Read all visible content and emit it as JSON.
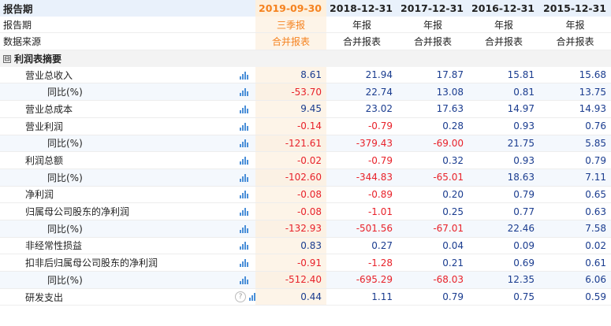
{
  "header": {
    "label": "报告期",
    "periods": [
      "2019-09-30",
      "2018-12-31",
      "2017-12-31",
      "2016-12-31",
      "2015-12-31"
    ]
  },
  "report_types": {
    "label": "报告期",
    "values": [
      "三季报",
      "年报",
      "年报",
      "年报",
      "年报"
    ]
  },
  "data_source": {
    "label": "数据来源",
    "values": [
      "合并报表",
      "合并报表",
      "合并报表",
      "合并报表",
      "合并报表"
    ]
  },
  "section": {
    "toggle": "⊟",
    "title": "利润表摘要"
  },
  "rows": [
    {
      "label": "营业总收入",
      "level": 1,
      "values": [
        "8.61",
        "21.94",
        "17.87",
        "15.81",
        "15.68"
      ]
    },
    {
      "label": "同比(%)",
      "level": 2,
      "values": [
        "-53.70",
        "22.74",
        "13.08",
        "0.81",
        "13.75"
      ]
    },
    {
      "label": "营业总成本",
      "level": 1,
      "values": [
        "9.45",
        "23.02",
        "17.63",
        "14.97",
        "14.93"
      ]
    },
    {
      "label": "营业利润",
      "level": 1,
      "values": [
        "-0.14",
        "-0.79",
        "0.28",
        "0.93",
        "0.76"
      ]
    },
    {
      "label": "同比(%)",
      "level": 2,
      "values": [
        "-121.61",
        "-379.43",
        "-69.00",
        "21.75",
        "5.85"
      ]
    },
    {
      "label": "利润总额",
      "level": 1,
      "values": [
        "-0.02",
        "-0.79",
        "0.32",
        "0.93",
        "0.79"
      ]
    },
    {
      "label": "同比(%)",
      "level": 2,
      "values": [
        "-102.60",
        "-344.83",
        "-65.01",
        "18.63",
        "7.11"
      ]
    },
    {
      "label": "净利润",
      "level": 1,
      "values": [
        "-0.08",
        "-0.89",
        "0.20",
        "0.79",
        "0.65"
      ]
    },
    {
      "label": "归属母公司股东的净利润",
      "level": 1,
      "values": [
        "-0.08",
        "-1.01",
        "0.25",
        "0.77",
        "0.63"
      ]
    },
    {
      "label": "同比(%)",
      "level": 2,
      "values": [
        "-132.93",
        "-501.56",
        "-67.01",
        "22.46",
        "7.58"
      ]
    },
    {
      "label": "非经常性损益",
      "level": 1,
      "values": [
        "0.83",
        "0.27",
        "0.04",
        "0.09",
        "0.02"
      ]
    },
    {
      "label": "扣非后归属母公司股东的净利润",
      "level": 1,
      "values": [
        "-0.91",
        "-1.28",
        "0.21",
        "0.69",
        "0.61"
      ]
    },
    {
      "label": "同比(%)",
      "level": 2,
      "values": [
        "-512.40",
        "-695.29",
        "-68.03",
        "12.35",
        "6.06"
      ]
    },
    {
      "label": "研发支出",
      "level": 1,
      "help": "?",
      "values": [
        "0.44",
        "1.11",
        "0.79",
        "0.75",
        "0.59"
      ]
    }
  ],
  "icons": {
    "chart": "bar-chart-icon",
    "help": "help-circle-icon"
  },
  "colors": {
    "current_period": "#f5821f",
    "negative": "#e8222a",
    "positive": "#1a3c8f",
    "chart_icon": "#4a8fd8"
  }
}
